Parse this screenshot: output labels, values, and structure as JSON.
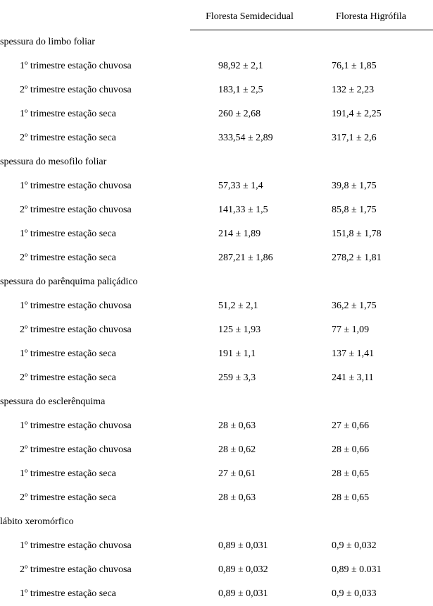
{
  "header": {
    "col2": "Floresta Semidecidual",
    "col3": "Floresta Higrófila"
  },
  "sections": [
    {
      "title": "spessura do limbo foliar",
      "rows": [
        {
          "label": "1º trimestre estação chuvosa",
          "c2": "98,92 ± 2,1",
          "c3": "76,1 ± 1,85"
        },
        {
          "label": "2º trimestre estação chuvosa",
          "c2": "183,1 ± 2,5",
          "c3": "132 ± 2,23"
        },
        {
          "label": "1º trimestre estação seca",
          "c2": "260 ± 2,68",
          "c3": "191,4 ± 2,25"
        },
        {
          "label": "2º trimestre estação seca",
          "c2": "333,54 ± 2,89",
          "c3": "317,1 ± 2,6"
        }
      ]
    },
    {
      "title": "spessura do mesofilo foliar",
      "rows": [
        {
          "label": "1º trimestre estação chuvosa",
          "c2": "57,33 ± 1,4",
          "c3": "39,8 ± 1,75"
        },
        {
          "label": "2º trimestre estação chuvosa",
          "c2": "141,33 ± 1,5",
          "c3": "85,8 ± 1,75"
        },
        {
          "label": "1º trimestre estação seca",
          "c2": "214 ± 1,89",
          "c3": "151,8 ± 1,78"
        },
        {
          "label": "2º trimestre estação seca",
          "c2": "287,21 ± 1,86",
          "c3": "278,2 ± 1,81"
        }
      ]
    },
    {
      "title": "spessura do parênquima paliçádico",
      "rows": [
        {
          "label": "1º trimestre estação chuvosa",
          "c2": "51,2 ± 2,1",
          "c3": "36,2 ± 1,75"
        },
        {
          "label": "2º trimestre estação chuvosa",
          "c2": "125 ± 1,93",
          "c3": "77 ± 1,09"
        },
        {
          "label": "1º trimestre estação seca",
          "c2": "191 ± 1,1",
          "c3": "137 ± 1,41"
        },
        {
          "label": "2º trimestre estação seca",
          "c2": "259 ± 3,3",
          "c3": "241 ± 3,11"
        }
      ]
    },
    {
      "title": "spessura do esclerênquima",
      "rows": [
        {
          "label": "1º trimestre estação chuvosa",
          "c2": "28 ± 0,63",
          "c3": "27 ± 0,66"
        },
        {
          "label": "2º trimestre estação chuvosa",
          "c2": "28 ± 0,62",
          "c3": "28 ± 0,66"
        },
        {
          "label": "1º trimestre estação seca",
          "c2": "27 ± 0,61",
          "c3": "28 ± 0,65"
        },
        {
          "label": "2º trimestre estação seca",
          "c2": "28 ± 0,63",
          "c3": "28 ± 0,65"
        }
      ]
    },
    {
      "title": "lábito xeromórfico",
      "rows": [
        {
          "label": "1º trimestre estação chuvosa",
          "c2": "0,89 ± 0,031",
          "c3": "0,9 ± 0,032"
        },
        {
          "label": "2º trimestre estação chuvosa",
          "c2": "0,89 ± 0,032",
          "c3": "0,89 ± 0.031"
        },
        {
          "label": "1º trimestre estação seca",
          "c2": "0,89 ± 0,031",
          "c3": "0,9 ± 0,033"
        }
      ]
    }
  ]
}
